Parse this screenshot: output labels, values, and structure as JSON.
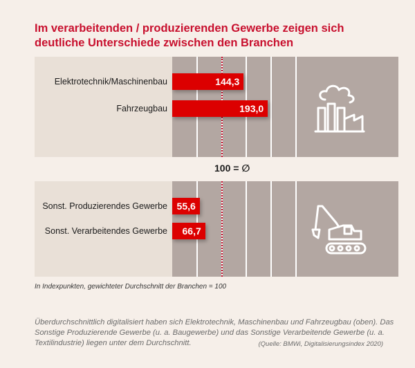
{
  "title": "Im verarbeitenden / produzierenden Gewerbe zeigen sich deutliche Unterschiede zwischen den Branchen",
  "avg_label": "100 = ∅",
  "note": "In Indexpunkten, gewichteter Durchschnitt der Branchen = 100",
  "description": "Überdurchschnittlich digitalisiert haben sich Elektrotechnik, Maschinenbau und Fahrzeugbau (oben). Das Sonstige Produzierende Gewerbe (u. a. Baugewerbe) und das Sonstige Verarbeitende Gewerbe (u. a. Textilindustrie) liegen unter dem Durchschnitt.",
  "source": "(Quelle: BMWi, Digitalisierungsindex 2020)",
  "colors": {
    "bar": "#dc0000",
    "title": "#c8102e",
    "panel_left": "#e9e0d7",
    "panel_right": "#b3a7a2",
    "background": "#f6efe9"
  },
  "chart_data": [
    {
      "type": "bar",
      "orientation": "horizontal",
      "categories": [
        "Elektrotechnik/Maschinenbau",
        "Fahrzeugbau"
      ],
      "values": [
        144.3,
        193.0
      ],
      "value_labels": [
        "144,3",
        "193,0"
      ],
      "reference_line": 100,
      "grid": true,
      "icon": "factory-icon"
    },
    {
      "type": "bar",
      "orientation": "horizontal",
      "categories": [
        "Sonst. Produzierendes Gewerbe",
        "Sonst. Verarbeitendes Gewerbe"
      ],
      "values": [
        55.6,
        66.7
      ],
      "value_labels": [
        "55,6",
        "66,7"
      ],
      "reference_line": 100,
      "grid": true,
      "icon": "excavator-icon"
    }
  ]
}
